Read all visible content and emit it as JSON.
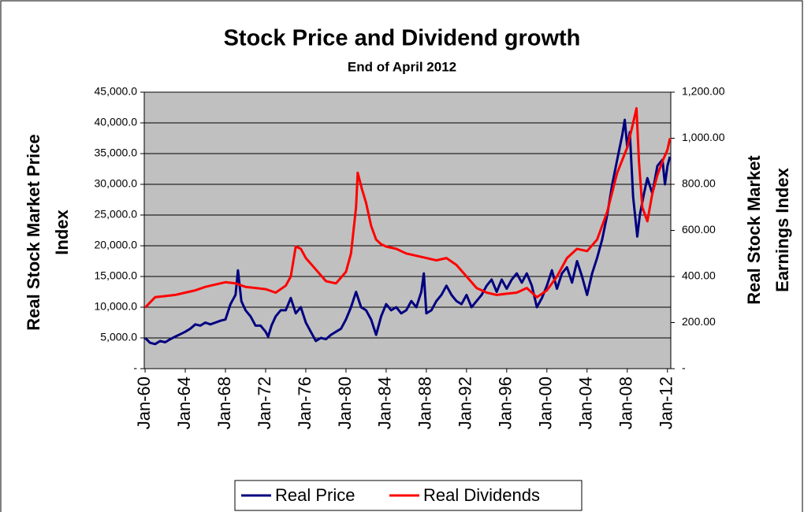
{
  "chart_data": {
    "type": "line",
    "title": "Stock Price and Dividend growth",
    "subtitle": "End of April 2012",
    "y_label": [
      "Real Stock Market Price",
      "Index"
    ],
    "y2_label": [
      "Real Stock Market",
      "Earnings Index"
    ],
    "xlim": [
      "1959-12",
      "2012-05"
    ],
    "xticks": [
      {
        "value": "1960-01",
        "label": "Jan-60"
      },
      {
        "value": "1964-01",
        "label": "Jan-64"
      },
      {
        "value": "1968-01",
        "label": "Jan-68"
      },
      {
        "value": "1972-01",
        "label": "Jan-72"
      },
      {
        "value": "1976-01",
        "label": "Jan-76"
      },
      {
        "value": "1980-01",
        "label": "Jan-80"
      },
      {
        "value": "1984-01",
        "label": "Jan-84"
      },
      {
        "value": "1988-01",
        "label": "Jan-88"
      },
      {
        "value": "1992-01",
        "label": "Jan-92"
      },
      {
        "value": "1996-01",
        "label": "Jan-96"
      },
      {
        "value": "2000-01",
        "label": "Jan-00"
      },
      {
        "value": "2004-01",
        "label": "Jan-04"
      },
      {
        "value": "2008-01",
        "label": "Jan-08"
      },
      {
        "value": "2012-01",
        "label": "Jan-12"
      }
    ],
    "ylim": [
      0,
      45000
    ],
    "yticks": [
      {
        "value": 0,
        "label": "-"
      },
      {
        "value": 5000,
        "label": "5,000.0"
      },
      {
        "value": 10000,
        "label": "10,000.0"
      },
      {
        "value": 15000,
        "label": "15,000.0"
      },
      {
        "value": 20000,
        "label": "20,000.0"
      },
      {
        "value": 25000,
        "label": "25,000.0"
      },
      {
        "value": 30000,
        "label": "30,000.0"
      },
      {
        "value": 35000,
        "label": "35,000.0"
      },
      {
        "value": 40000,
        "label": "40,000.0"
      },
      {
        "value": 45000,
        "label": "45,000.0"
      }
    ],
    "y2lim": [
      0,
      1200
    ],
    "y2ticks": [
      {
        "value": 0,
        "label": "-"
      },
      {
        "value": 200,
        "label": "200.00"
      },
      {
        "value": 400,
        "label": "400.00"
      },
      {
        "value": 600,
        "label": "600.00"
      },
      {
        "value": 800,
        "label": "800.00"
      },
      {
        "value": 1000,
        "label": "1,000.00"
      },
      {
        "value": 1200,
        "label": "1,200.00"
      }
    ],
    "grid": true,
    "legend": "bottom",
    "series": [
      {
        "name": "Real Price",
        "color": "#000080",
        "x": [
          "1960-01",
          "1960-07",
          "1961-01",
          "1961-07",
          "1962-01",
          "1962-07",
          "1963-01",
          "1963-07",
          "1964-01",
          "1964-07",
          "1965-01",
          "1965-07",
          "1966-01",
          "1966-07",
          "1967-01",
          "1967-07",
          "1968-01",
          "1968-07",
          "1969-01",
          "1969-04",
          "1969-08",
          "1970-01",
          "1970-07",
          "1971-01",
          "1971-07",
          "1972-01",
          "1972-04",
          "1972-08",
          "1973-01",
          "1973-07",
          "1974-01",
          "1974-07",
          "1975-01",
          "1975-07",
          "1976-01",
          "1976-07",
          "1977-01",
          "1977-07",
          "1978-01",
          "1978-07",
          "1979-01",
          "1979-07",
          "1980-01",
          "1980-07",
          "1981-01",
          "1981-07",
          "1982-01",
          "1982-07",
          "1983-01",
          "1983-07",
          "1984-01",
          "1984-07",
          "1985-01",
          "1985-07",
          "1986-01",
          "1986-07",
          "1987-01",
          "1987-07",
          "1987-10",
          "1988-01",
          "1988-07",
          "1989-01",
          "1989-07",
          "1990-01",
          "1990-07",
          "1991-01",
          "1991-07",
          "1992-01",
          "1992-07",
          "1993-01",
          "1993-07",
          "1994-01",
          "1994-07",
          "1995-01",
          "1995-07",
          "1996-01",
          "1996-07",
          "1997-01",
          "1997-07",
          "1998-01",
          "1998-07",
          "1999-01",
          "1999-07",
          "2000-01",
          "2000-07",
          "2001-01",
          "2001-07",
          "2002-01",
          "2002-07",
          "2003-01",
          "2003-07",
          "2004-01",
          "2004-07",
          "2005-01",
          "2005-07",
          "2006-01",
          "2006-07",
          "2007-01",
          "2007-07",
          "2007-10",
          "2008-01",
          "2008-04",
          "2008-08",
          "2009-01",
          "2009-04",
          "2009-09",
          "2010-01",
          "2010-07",
          "2011-01",
          "2011-07",
          "2011-10",
          "2012-01",
          "2012-04"
        ],
        "values": [
          5000,
          4200,
          4000,
          4500,
          4300,
          4800,
          5200,
          5600,
          6000,
          6500,
          7200,
          7000,
          7500,
          7200,
          7500,
          7800,
          8000,
          10500,
          12000,
          16000,
          11000,
          9500,
          8500,
          7000,
          7000,
          6000,
          5200,
          7000,
          8500,
          9500,
          9500,
          11500,
          9000,
          10000,
          7500,
          6000,
          4500,
          5000,
          4800,
          5500,
          6000,
          6500,
          8000,
          10000,
          12500,
          10000,
          9500,
          8000,
          5500,
          8500,
          10500,
          9500,
          10000,
          9000,
          9500,
          11000,
          10000,
          12500,
          15500,
          9000,
          9500,
          11000,
          12000,
          13500,
          12000,
          11000,
          10500,
          12000,
          10000,
          11000,
          12000,
          13500,
          14500,
          12500,
          14500,
          13000,
          14500,
          15500,
          14000,
          15500,
          13500,
          10000,
          11500,
          13500,
          16000,
          13000,
          15500,
          16500,
          14000,
          17500,
          15000,
          12000,
          15500,
          18000,
          21000,
          25000,
          30000,
          34000,
          38000,
          40500,
          36000,
          38500,
          28000,
          21500,
          25000,
          28500,
          31000,
          28500,
          33000,
          34000,
          30000,
          33000,
          34500
        ]
      },
      {
        "name": "Real Dividends",
        "color": "#ff0000",
        "axis": "y2",
        "x": [
          "1960-01",
          "1961-01",
          "1962-01",
          "1963-01",
          "1964-01",
          "1965-01",
          "1966-01",
          "1967-01",
          "1968-01",
          "1969-01",
          "1970-01",
          "1971-01",
          "1972-01",
          "1973-01",
          "1974-01",
          "1974-07",
          "1975-01",
          "1975-07",
          "1976-01",
          "1977-01",
          "1978-01",
          "1979-01",
          "1980-01",
          "1980-07",
          "1981-01",
          "1981-03",
          "1981-08",
          "1982-01",
          "1982-07",
          "1983-01",
          "1983-07",
          "1984-01",
          "1985-01",
          "1986-01",
          "1987-01",
          "1988-01",
          "1989-01",
          "1990-01",
          "1991-01",
          "1992-01",
          "1993-01",
          "1994-01",
          "1995-01",
          "1996-01",
          "1997-01",
          "1998-01",
          "1999-01",
          "2000-01",
          "2001-01",
          "2002-01",
          "2003-01",
          "2004-01",
          "2005-01",
          "2006-01",
          "2007-01",
          "2008-01",
          "2008-07",
          "2008-12",
          "2009-03",
          "2009-07",
          "2010-01",
          "2010-07",
          "2011-01",
          "2011-07",
          "2012-01",
          "2012-04"
        ],
        "values": [
          265,
          310,
          315,
          320,
          330,
          340,
          355,
          365,
          375,
          370,
          355,
          350,
          345,
          330,
          360,
          400,
          530,
          520,
          480,
          430,
          380,
          370,
          420,
          500,
          700,
          850,
          780,
          720,
          620,
          560,
          540,
          530,
          520,
          500,
          490,
          480,
          470,
          480,
          450,
          400,
          350,
          330,
          320,
          325,
          330,
          350,
          310,
          340,
          400,
          480,
          520,
          510,
          560,
          680,
          850,
          960,
          1050,
          1130,
          900,
          700,
          640,
          760,
          840,
          900,
          950,
          1000
        ]
      }
    ]
  }
}
